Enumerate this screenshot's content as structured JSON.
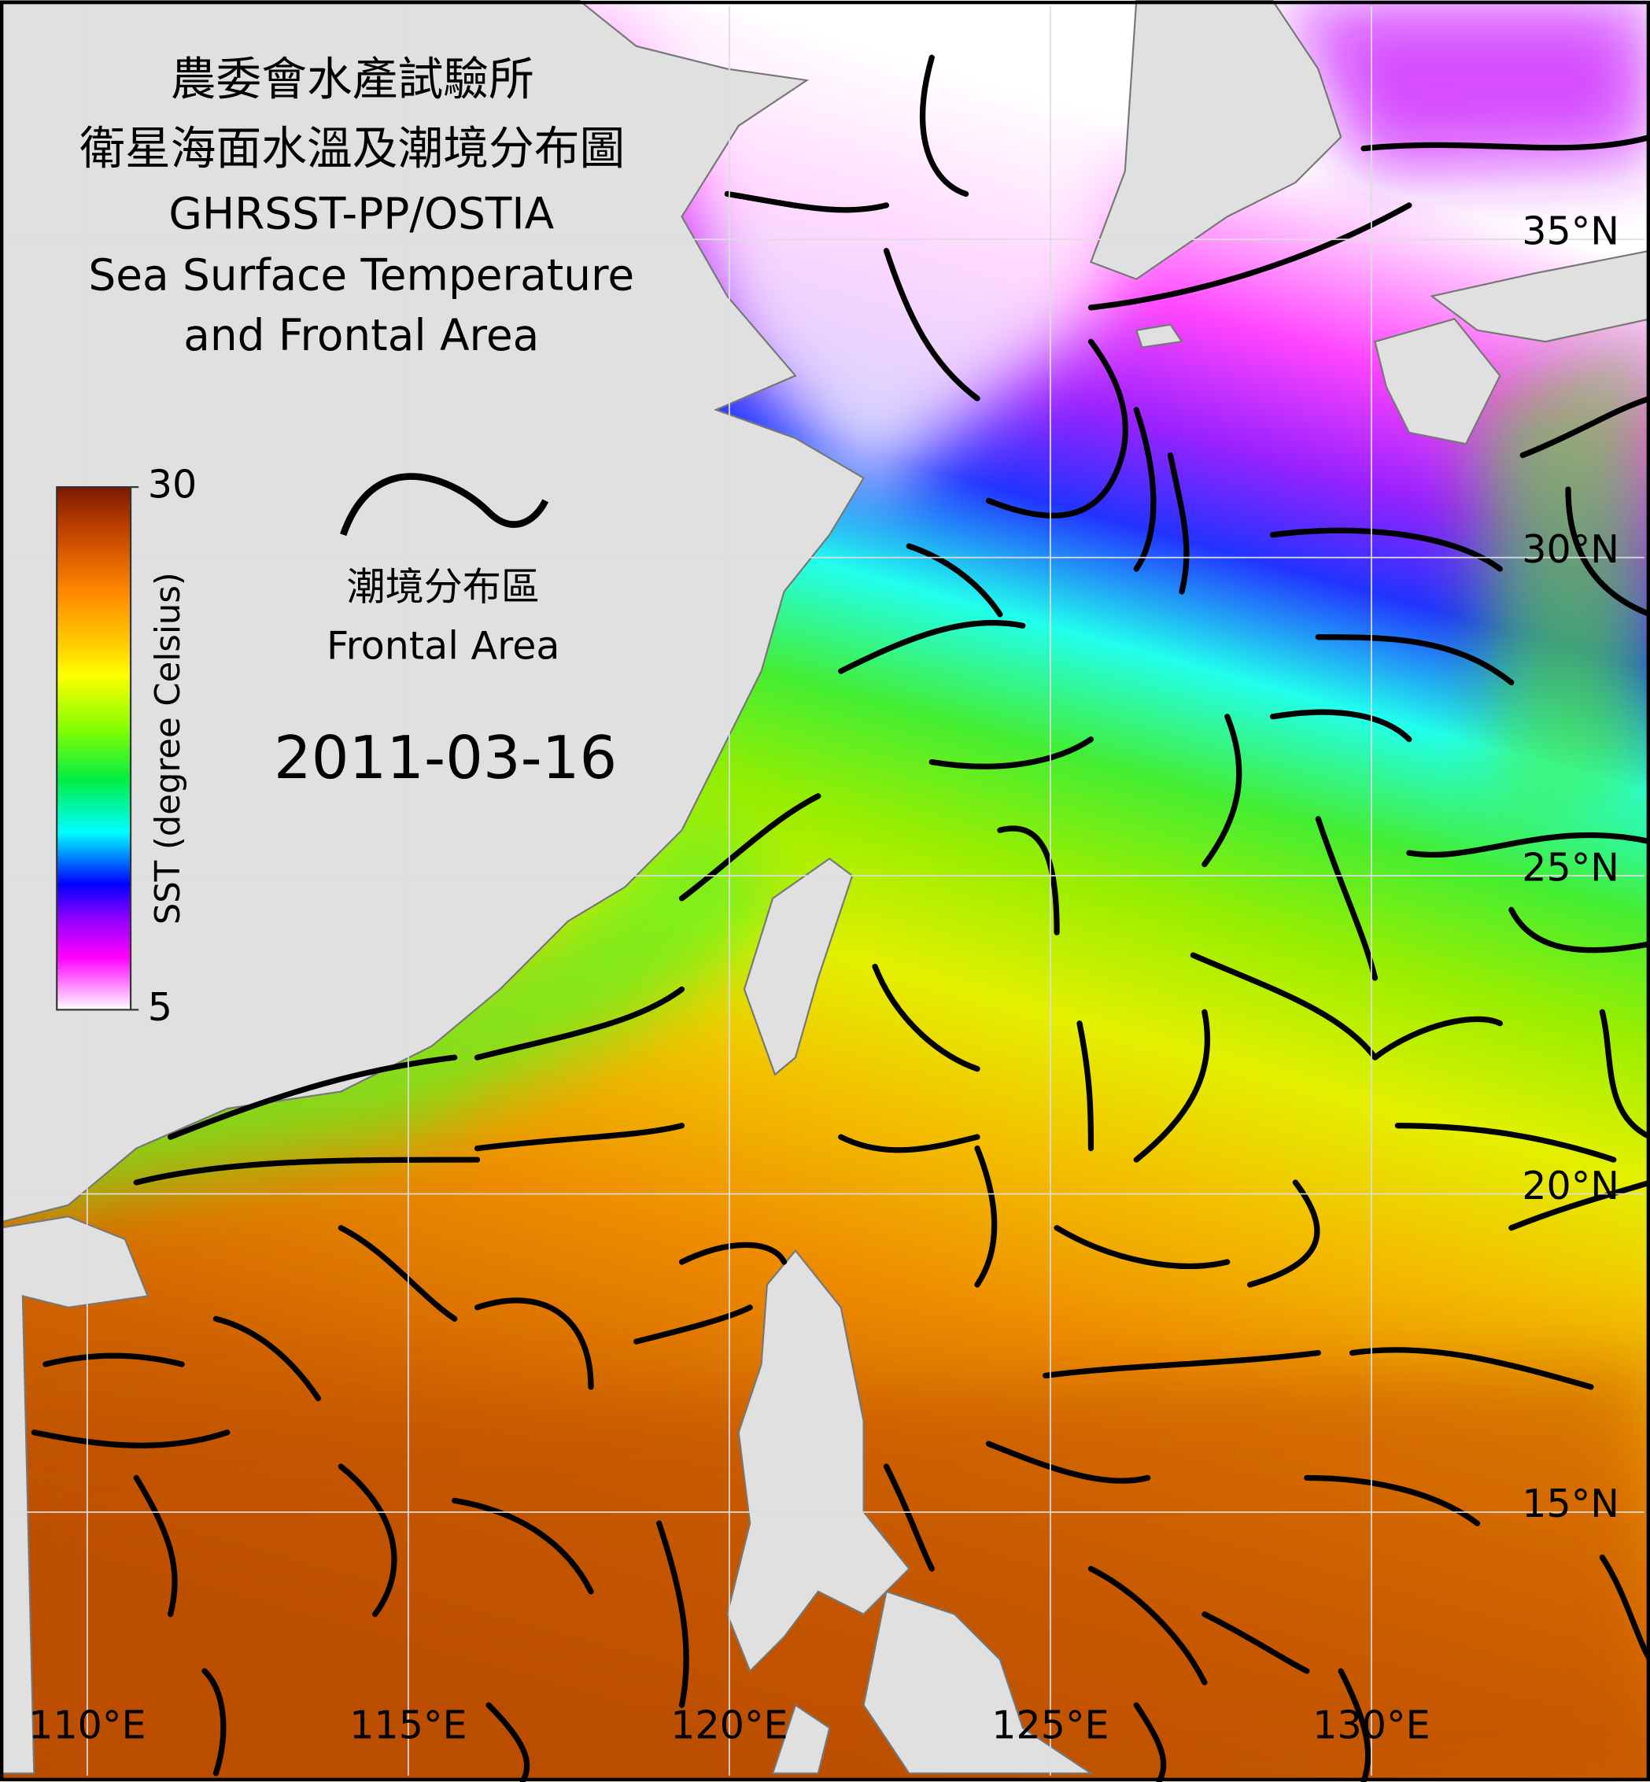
{
  "title_lines": [
    "農委會水產試驗所",
    "衛星海面水溫及潮境分布圖",
    "GHRSST-PP/OSTIA",
    "Sea Surface Temperature",
    "and Frontal Area"
  ],
  "colorbar": {
    "label": "SST (degree Celsius)",
    "range": [
      5,
      30
    ],
    "ticks": [
      5,
      30
    ]
  },
  "legend": {
    "label_zh": "潮境分布區",
    "label_en": "Frontal Area"
  },
  "date": "2011-03-16",
  "map": {
    "lon_range": [
      108.73,
      134.25
    ],
    "lat_range": [
      10.86,
      38.66
    ],
    "lon_ticks": [
      {
        "value": 110,
        "label": "110°E"
      },
      {
        "value": 115,
        "label": "115°E"
      },
      {
        "value": 120,
        "label": "120°E"
      },
      {
        "value": 125,
        "label": "125°E"
      },
      {
        "value": 130,
        "label": "130°E"
      }
    ],
    "lat_ticks": [
      {
        "value": 35,
        "label": "35°N"
      },
      {
        "value": 30,
        "label": "30°N"
      },
      {
        "value": 25,
        "label": "25°N"
      },
      {
        "value": 20,
        "label": "20°N"
      },
      {
        "value": 15,
        "label": "15°N"
      }
    ]
  }
}
